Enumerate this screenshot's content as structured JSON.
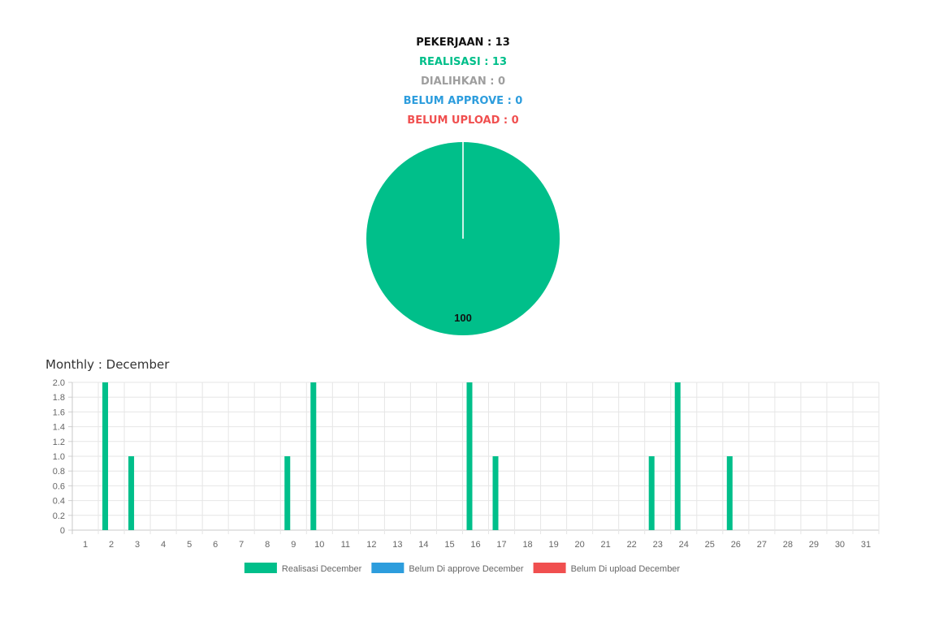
{
  "summary": {
    "pekerjaan": "PEKERJAAN : 13",
    "realisasi": "REALISASI : 13",
    "dialihkan": "DIALIHKAN : 0",
    "belum_approve": "BELUM APPROVE : 0",
    "belum_upload": "BELUM UPLOAD : 0"
  },
  "colors": {
    "realisasi": "#00bf8a",
    "dialihkan": "#9e9e9e",
    "approve": "#2d9ddd",
    "upload": "#f04f4f"
  },
  "monthly_title": "Monthly : December",
  "chart_data": [
    {
      "type": "pie",
      "slices": [
        {
          "label": "Realisasi",
          "value": 100,
          "color": "#00bf8a"
        }
      ],
      "data_labels": [
        "100"
      ]
    },
    {
      "type": "bar",
      "categories": [
        "1",
        "2",
        "3",
        "4",
        "5",
        "6",
        "7",
        "8",
        "9",
        "10",
        "11",
        "12",
        "13",
        "14",
        "15",
        "16",
        "17",
        "18",
        "19",
        "20",
        "21",
        "22",
        "23",
        "24",
        "25",
        "26",
        "27",
        "28",
        "29",
        "30",
        "31"
      ],
      "series": [
        {
          "name": "Realisasi December",
          "color": "#00bf8a",
          "values": [
            0,
            2,
            1,
            0,
            0,
            0,
            0,
            0,
            1,
            2,
            0,
            0,
            0,
            0,
            0,
            2,
            1,
            0,
            0,
            0,
            0,
            0,
            1,
            2,
            0,
            1,
            0,
            0,
            0,
            0,
            0
          ]
        },
        {
          "name": "Belum Di approve December",
          "color": "#2d9ddd",
          "values": [
            0,
            0,
            0,
            0,
            0,
            0,
            0,
            0,
            0,
            0,
            0,
            0,
            0,
            0,
            0,
            0,
            0,
            0,
            0,
            0,
            0,
            0,
            0,
            0,
            0,
            0,
            0,
            0,
            0,
            0,
            0
          ]
        },
        {
          "name": "Belum Di upload December",
          "color": "#f04f4f",
          "values": [
            0,
            0,
            0,
            0,
            0,
            0,
            0,
            0,
            0,
            0,
            0,
            0,
            0,
            0,
            0,
            0,
            0,
            0,
            0,
            0,
            0,
            0,
            0,
            0,
            0,
            0,
            0,
            0,
            0,
            0,
            0
          ]
        }
      ],
      "ylim": [
        0,
        2.0
      ],
      "yticks": [
        "0",
        "0.2",
        "0.4",
        "0.6",
        "0.8",
        "1.0",
        "1.2",
        "1.4",
        "1.6",
        "1.8",
        "2.0"
      ],
      "grid": true,
      "legend_placement": "bottom"
    }
  ]
}
